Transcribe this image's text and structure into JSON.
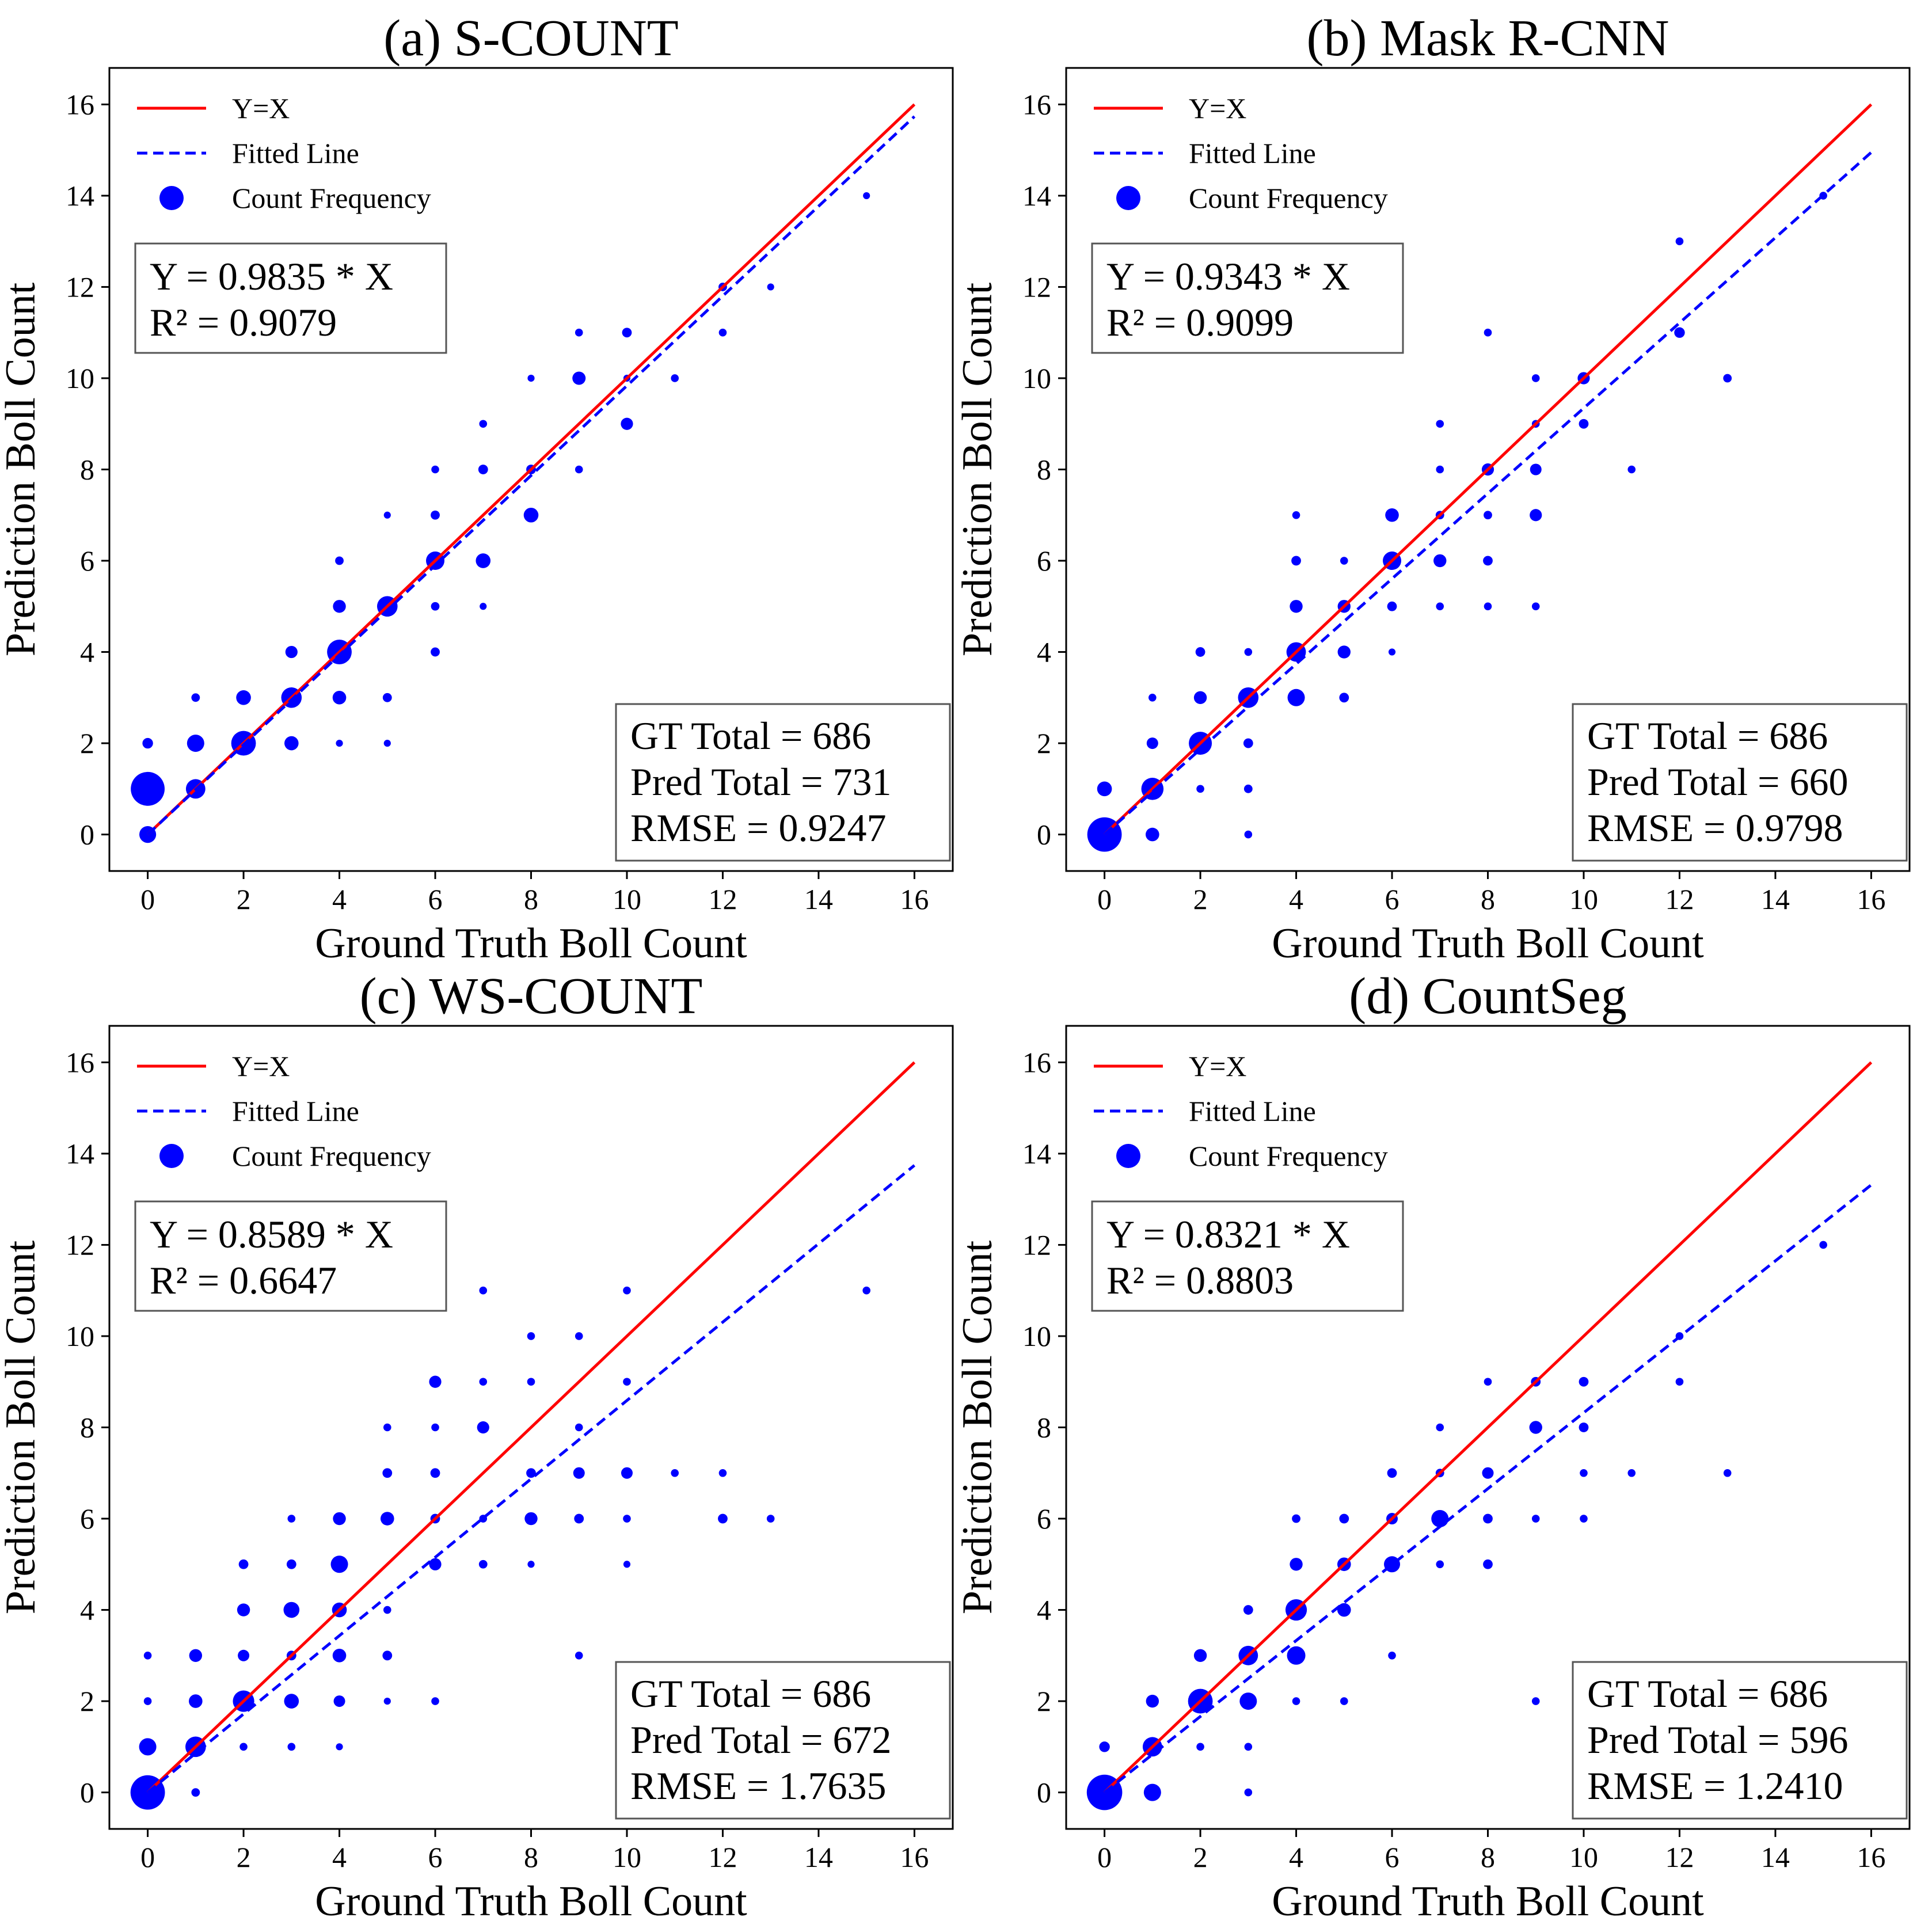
{
  "chart_data": [
    {
      "id": "a",
      "type": "scatter",
      "title": "(a) S-COUNT",
      "xlabel": "Ground Truth Boll Count",
      "ylabel": "Prediction Boll Count",
      "xlim": [
        -0.8,
        16.8
      ],
      "ylim": [
        -0.8,
        16.8
      ],
      "ticks": [
        "0",
        "2",
        "4",
        "6",
        "8",
        "10",
        "12",
        "14",
        "16"
      ],
      "legend": {
        "identity": "Y=X",
        "fit": "Fitted Line",
        "freq": "Count Frequency"
      },
      "identity_line": {
        "label": "Y=X",
        "x": [
          0,
          16
        ],
        "y": [
          0,
          16
        ]
      },
      "fitted_line": {
        "label": "Fitted Line",
        "slope": 0.9835,
        "x": [
          0,
          16
        ]
      },
      "equation": "Y = 0.9835 * X",
      "r2": "R² = 0.9079",
      "stats": [
        "GT Total = 686",
        "Pred Total = 731",
        "RMSE = 0.9247"
      ],
      "points": [
        [
          0,
          0,
          28
        ],
        [
          0,
          1,
          144
        ],
        [
          0,
          2,
          8
        ],
        [
          1,
          1,
          40
        ],
        [
          1,
          2,
          30
        ],
        [
          1,
          3,
          4
        ],
        [
          2,
          2,
          70
        ],
        [
          2,
          3,
          20
        ],
        [
          3,
          2,
          18
        ],
        [
          3,
          3,
          45
        ],
        [
          3,
          4,
          12
        ],
        [
          4,
          2,
          2
        ],
        [
          4,
          3,
          16
        ],
        [
          4,
          4,
          70
        ],
        [
          4,
          5,
          14
        ],
        [
          4,
          6,
          4
        ],
        [
          5,
          2,
          2
        ],
        [
          5,
          3,
          5
        ],
        [
          5,
          5,
          45
        ],
        [
          5,
          7,
          2
        ],
        [
          6,
          4,
          5
        ],
        [
          6,
          5,
          4
        ],
        [
          6,
          6,
          35
        ],
        [
          6,
          7,
          5
        ],
        [
          6,
          8,
          3
        ],
        [
          7,
          5,
          2
        ],
        [
          7,
          6,
          20
        ],
        [
          7,
          8,
          6
        ],
        [
          7,
          9,
          3
        ],
        [
          8,
          7,
          20
        ],
        [
          8,
          8,
          6
        ],
        [
          8,
          10,
          2
        ],
        [
          9,
          8,
          3
        ],
        [
          9,
          10,
          15
        ],
        [
          9,
          11,
          3
        ],
        [
          10,
          9,
          12
        ],
        [
          10,
          10,
          2
        ],
        [
          10,
          11,
          6
        ],
        [
          11,
          10,
          3
        ],
        [
          12,
          11,
          3
        ],
        [
          12,
          12,
          4
        ],
        [
          13,
          12,
          2
        ],
        [
          15,
          14,
          2
        ]
      ]
    },
    {
      "id": "b",
      "type": "scatter",
      "title": "(b) Mask R-CNN",
      "xlabel": "Ground Truth Boll Count",
      "ylabel": "Prediction Boll Count",
      "xlim": [
        -0.8,
        16.8
      ],
      "ylim": [
        -0.8,
        16.8
      ],
      "ticks": [
        "0",
        "2",
        "4",
        "6",
        "8",
        "10",
        "12",
        "14",
        "16"
      ],
      "legend": {
        "identity": "Y=X",
        "fit": "Fitted Line",
        "freq": "Count Frequency"
      },
      "identity_line": {
        "label": "Y=X",
        "x": [
          0,
          16
        ],
        "y": [
          0,
          16
        ]
      },
      "fitted_line": {
        "label": "Fitted Line",
        "slope": 0.9343,
        "x": [
          0,
          16
        ]
      },
      "equation": "Y = 0.9343 * X",
      "r2": "R² = 0.9099",
      "stats": [
        "GT Total = 686",
        "Pred Total = 660",
        "RMSE = 0.9798"
      ],
      "points": [
        [
          0,
          0,
          150
        ],
        [
          0,
          1,
          20
        ],
        [
          1,
          0,
          16
        ],
        [
          1,
          1,
          55
        ],
        [
          1,
          2,
          10
        ],
        [
          1,
          3,
          3
        ],
        [
          2,
          1,
          3
        ],
        [
          2,
          2,
          60
        ],
        [
          2,
          3,
          14
        ],
        [
          2,
          4,
          6
        ],
        [
          3,
          0,
          3
        ],
        [
          3,
          1,
          4
        ],
        [
          3,
          2,
          6
        ],
        [
          3,
          3,
          45
        ],
        [
          3,
          4,
          3
        ],
        [
          4,
          3,
          30
        ],
        [
          4,
          4,
          40
        ],
        [
          4,
          5,
          14
        ],
        [
          4,
          6,
          6
        ],
        [
          4,
          7,
          3
        ],
        [
          5,
          3,
          6
        ],
        [
          5,
          4,
          14
        ],
        [
          5,
          5,
          14
        ],
        [
          5,
          6,
          3
        ],
        [
          6,
          4,
          2
        ],
        [
          6,
          5,
          6
        ],
        [
          6,
          6,
          35
        ],
        [
          6,
          7,
          16
        ],
        [
          7,
          5,
          3
        ],
        [
          7,
          6,
          14
        ],
        [
          7,
          7,
          4
        ],
        [
          7,
          8,
          3
        ],
        [
          7,
          9,
          3
        ],
        [
          8,
          5,
          3
        ],
        [
          8,
          6,
          6
        ],
        [
          8,
          7,
          4
        ],
        [
          8,
          8,
          12
        ],
        [
          8,
          11,
          3
        ],
        [
          9,
          5,
          3
        ],
        [
          9,
          7,
          12
        ],
        [
          9,
          8,
          10
        ],
        [
          9,
          9,
          3
        ],
        [
          9,
          10,
          3
        ],
        [
          10,
          9,
          6
        ],
        [
          10,
          10,
          12
        ],
        [
          11,
          8,
          3
        ],
        [
          12,
          11,
          8
        ],
        [
          12,
          13,
          3
        ],
        [
          13,
          10,
          4
        ],
        [
          15,
          14,
          3
        ]
      ]
    },
    {
      "id": "c",
      "type": "scatter",
      "title": "(c) WS-COUNT",
      "xlabel": "Ground Truth Boll Count",
      "ylabel": "Prediction Boll Count",
      "xlim": [
        -0.8,
        16.8
      ],
      "ylim": [
        -0.8,
        16.8
      ],
      "ticks": [
        "0",
        "2",
        "4",
        "6",
        "8",
        "10",
        "12",
        "14",
        "16"
      ],
      "legend": {
        "identity": "Y=X",
        "fit": "Fitted Line",
        "freq": "Count Frequency"
      },
      "identity_line": {
        "label": "Y=X",
        "x": [
          0,
          16
        ],
        "y": [
          0,
          16
        ]
      },
      "fitted_line": {
        "label": "Fitted Line",
        "slope": 0.8589,
        "x": [
          0,
          16
        ]
      },
      "equation": "Y = 0.8589 * X",
      "r2": "R² = 0.6647",
      "stats": [
        "GT Total = 686",
        "Pred Total = 672",
        "RMSE = 1.7635"
      ],
      "points": [
        [
          0,
          0,
          150
        ],
        [
          0,
          1,
          30
        ],
        [
          0,
          2,
          3
        ],
        [
          0,
          3,
          3
        ],
        [
          1,
          0,
          4
        ],
        [
          1,
          1,
          45
        ],
        [
          1,
          2,
          16
        ],
        [
          1,
          3,
          14
        ],
        [
          2,
          1,
          3
        ],
        [
          2,
          2,
          50
        ],
        [
          2,
          3,
          10
        ],
        [
          2,
          4,
          14
        ],
        [
          2,
          5,
          6
        ],
        [
          3,
          1,
          3
        ],
        [
          3,
          2,
          20
        ],
        [
          3,
          3,
          6
        ],
        [
          3,
          4,
          24
        ],
        [
          3,
          5,
          6
        ],
        [
          3,
          6,
          3
        ],
        [
          4,
          1,
          2
        ],
        [
          4,
          2,
          10
        ],
        [
          4,
          3,
          16
        ],
        [
          4,
          4,
          20
        ],
        [
          4,
          5,
          30
        ],
        [
          4,
          6,
          14
        ],
        [
          5,
          2,
          2
        ],
        [
          5,
          3,
          6
        ],
        [
          5,
          4,
          3
        ],
        [
          5,
          6,
          16
        ],
        [
          5,
          7,
          6
        ],
        [
          5,
          8,
          3
        ],
        [
          6,
          2,
          3
        ],
        [
          6,
          5,
          12
        ],
        [
          6,
          6,
          6
        ],
        [
          6,
          7,
          6
        ],
        [
          6,
          8,
          3
        ],
        [
          6,
          9,
          12
        ],
        [
          7,
          5,
          4
        ],
        [
          7,
          6,
          3
        ],
        [
          7,
          8,
          12
        ],
        [
          7,
          9,
          3
        ],
        [
          7,
          11,
          3
        ],
        [
          8,
          5,
          2
        ],
        [
          8,
          6,
          14
        ],
        [
          8,
          7,
          6
        ],
        [
          8,
          9,
          3
        ],
        [
          8,
          10,
          3
        ],
        [
          9,
          3,
          3
        ],
        [
          9,
          6,
          6
        ],
        [
          9,
          7,
          10
        ],
        [
          9,
          8,
          3
        ],
        [
          9,
          10,
          3
        ],
        [
          10,
          5,
          2
        ],
        [
          10,
          6,
          3
        ],
        [
          10,
          7,
          10
        ],
        [
          10,
          9,
          3
        ],
        [
          10,
          11,
          3
        ],
        [
          11,
          7,
          3
        ],
        [
          12,
          6,
          6
        ],
        [
          12,
          7,
          3
        ],
        [
          13,
          6,
          3
        ],
        [
          15,
          11,
          3
        ]
      ]
    },
    {
      "id": "d",
      "type": "scatter",
      "title": "(d) CountSeg",
      "xlabel": "Ground Truth Boll Count",
      "ylabel": "Prediction Boll Count",
      "xlim": [
        -0.8,
        16.8
      ],
      "ylim": [
        -0.8,
        16.8
      ],
      "ticks": [
        "0",
        "2",
        "4",
        "6",
        "8",
        "10",
        "12",
        "14",
        "16"
      ],
      "legend": {
        "identity": "Y=X",
        "fit": "Fitted Line",
        "freq": "Count Frequency"
      },
      "identity_line": {
        "label": "Y=X",
        "x": [
          0,
          16
        ],
        "y": [
          0,
          16
        ]
      },
      "fitted_line": {
        "label": "Fitted Line",
        "slope": 0.8321,
        "x": [
          0,
          16
        ]
      },
      "equation": "Y = 0.8321 * X",
      "r2": "R² = 0.8803",
      "stats": [
        "GT Total = 686",
        "Pred Total = 596",
        "RMSE = 1.2410"
      ],
      "points": [
        [
          0,
          0,
          160
        ],
        [
          0,
          1,
          8
        ],
        [
          1,
          0,
          30
        ],
        [
          1,
          1,
          40
        ],
        [
          1,
          2,
          14
        ],
        [
          2,
          1,
          3
        ],
        [
          2,
          2,
          70
        ],
        [
          2,
          3,
          14
        ],
        [
          3,
          0,
          3
        ],
        [
          3,
          1,
          3
        ],
        [
          3,
          2,
          30
        ],
        [
          3,
          3,
          40
        ],
        [
          3,
          4,
          6
        ],
        [
          4,
          2,
          3
        ],
        [
          4,
          3,
          35
        ],
        [
          4,
          4,
          50
        ],
        [
          4,
          5,
          14
        ],
        [
          4,
          6,
          4
        ],
        [
          5,
          2,
          3
        ],
        [
          5,
          4,
          16
        ],
        [
          5,
          5,
          16
        ],
        [
          5,
          6,
          6
        ],
        [
          6,
          3,
          3
        ],
        [
          6,
          5,
          25
        ],
        [
          6,
          6,
          10
        ],
        [
          6,
          7,
          6
        ],
        [
          7,
          5,
          3
        ],
        [
          7,
          6,
          30
        ],
        [
          7,
          7,
          4
        ],
        [
          7,
          8,
          3
        ],
        [
          8,
          5,
          6
        ],
        [
          8,
          6,
          6
        ],
        [
          8,
          7,
          10
        ],
        [
          8,
          9,
          3
        ],
        [
          9,
          2,
          3
        ],
        [
          9,
          6,
          3
        ],
        [
          9,
          8,
          14
        ],
        [
          9,
          9,
          6
        ],
        [
          10,
          6,
          3
        ],
        [
          10,
          7,
          3
        ],
        [
          10,
          8,
          6
        ],
        [
          10,
          9,
          6
        ],
        [
          11,
          7,
          3
        ],
        [
          12,
          9,
          3
        ],
        [
          12,
          10,
          3
        ],
        [
          13,
          7,
          3
        ],
        [
          15,
          12,
          3
        ]
      ]
    }
  ],
  "colors": {
    "identity": "#ff0000",
    "fit": "#0000ff",
    "points": "#0000ff",
    "frame": "#000000"
  }
}
